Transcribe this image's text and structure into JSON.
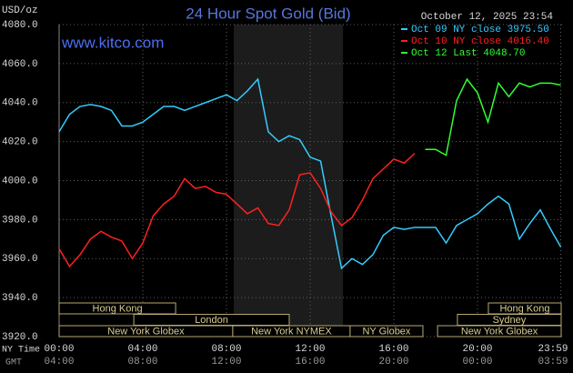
{
  "chart_data": {
    "type": "line",
    "title": "24 Hour Spot Gold (Bid)",
    "subtitle": "October 12, 2025 23:54",
    "website": "www.kitco.com",
    "y_label": "USD/oz",
    "x_label": "NY Time",
    "x2_label": "GMT",
    "x": [
      0,
      0.5,
      1,
      1.5,
      2,
      2.5,
      3,
      3.5,
      4,
      4.5,
      5,
      5.5,
      6,
      6.5,
      7,
      7.5,
      8,
      8.5,
      9,
      9.5,
      10,
      10.5,
      11,
      11.5,
      12,
      12.5,
      13,
      13.5,
      14,
      14.5,
      15,
      15.5,
      16,
      16.5,
      17,
      17.5,
      18,
      18.5,
      19,
      19.5,
      20,
      20.5,
      21,
      21.5,
      22,
      22.5,
      23,
      23.5,
      23.98
    ],
    "series": [
      {
        "name": "Oct 09 NY close 3975.50",
        "color": "#33ccff",
        "values": [
          4025,
          4034,
          4038,
          4039,
          4038,
          4036,
          4028,
          4028,
          4030,
          4034,
          4038,
          4038,
          4036,
          4038,
          4040,
          4042,
          4044,
          4041,
          4046,
          4052,
          4025,
          4020,
          4023,
          4021,
          4012,
          4010,
          3982,
          3955,
          3960,
          3957,
          3962,
          3972,
          3976,
          3975,
          3976,
          3976,
          3976,
          3968,
          3977,
          3980,
          3983,
          3988,
          3992,
          3988,
          3970,
          3978,
          3985,
          3975,
          3966
        ]
      },
      {
        "name": "Oct 10 NY close 4016.40",
        "color": "#ff2020",
        "values": [
          3965,
          3956,
          3962,
          3970,
          3974,
          3971,
          3969,
          3960,
          3968,
          3982,
          3988,
          3992,
          4001,
          3996,
          3997,
          3994,
          3993,
          3988,
          3983,
          3986,
          3978,
          3977,
          3985,
          4003,
          4004,
          3996,
          3984,
          3977,
          3981,
          3990,
          4001,
          4006,
          4011,
          4009,
          4014,
          null,
          null,
          null,
          null,
          null,
          null,
          null,
          null,
          null,
          null,
          null,
          null,
          null,
          null
        ]
      },
      {
        "name": "Oct 12 Last 4048.70",
        "color": "#33ff33",
        "values": [
          null,
          null,
          null,
          null,
          null,
          null,
          null,
          null,
          null,
          null,
          null,
          null,
          null,
          null,
          null,
          null,
          null,
          null,
          null,
          null,
          null,
          null,
          null,
          null,
          null,
          null,
          null,
          null,
          null,
          null,
          null,
          null,
          null,
          null,
          null,
          4016,
          4016,
          4013,
          4041,
          4052,
          4045,
          4030,
          4050,
          4043,
          4050,
          4048,
          4050,
          4050,
          4049
        ]
      }
    ],
    "xlim": [
      0,
      24
    ],
    "xticks": [
      {
        "value": 0,
        "label": "00:00"
      },
      {
        "value": 4,
        "label": "04:00"
      },
      {
        "value": 8,
        "label": "08:00"
      },
      {
        "value": 12,
        "label": "12:00"
      },
      {
        "value": 16,
        "label": "16:00"
      },
      {
        "value": 20,
        "label": "20:00"
      },
      {
        "value": 23.98,
        "label": "23:59"
      }
    ],
    "x2ticks": [
      {
        "value": 0,
        "label": "04:00"
      },
      {
        "value": 4,
        "label": "08:00"
      },
      {
        "value": 8,
        "label": "12:00"
      },
      {
        "value": 12,
        "label": "16:00"
      },
      {
        "value": 16,
        "label": "20:00"
      },
      {
        "value": 20,
        "label": "00:00"
      },
      {
        "value": 23.98,
        "label": "03:59"
      }
    ],
    "ylim": [
      3920,
      4080
    ],
    "yticks": [
      {
        "value": 3920,
        "label": "3920.0"
      },
      {
        "value": 3940,
        "label": "3940.0"
      },
      {
        "value": 3960,
        "label": "3960.0"
      },
      {
        "value": 3980,
        "label": "3980.0"
      },
      {
        "value": 4000,
        "label": "4000.0"
      },
      {
        "value": 4020,
        "label": "4020.0"
      },
      {
        "value": 4040,
        "label": "4040.0"
      },
      {
        "value": 4060,
        "label": "4060.0"
      },
      {
        "value": 4080,
        "label": "4080.0"
      }
    ],
    "grid": true,
    "shaded_range": [
      8.35,
      13.57
    ],
    "sessions": [
      [
        {
          "label": "Hong Kong",
          "start": 0,
          "end": 5.57
        },
        {
          "label": "Hong Kong",
          "start": 20.52,
          "end": 24
        }
      ],
      [
        {
          "label": "London",
          "start": 3.57,
          "end": 11
        },
        {
          "label": "Sydney",
          "start": 19.04,
          "end": 24
        }
      ],
      [
        {
          "label": "New York Globex",
          "start": 0,
          "end": 8.3
        },
        {
          "label": "New York NYMEX",
          "start": 8.3,
          "end": 13.91
        },
        {
          "label": "NY Globex",
          "start": 13.91,
          "end": 17.39
        },
        {
          "label": "New York Globex",
          "start": 18.09,
          "end": 24
        }
      ]
    ]
  }
}
